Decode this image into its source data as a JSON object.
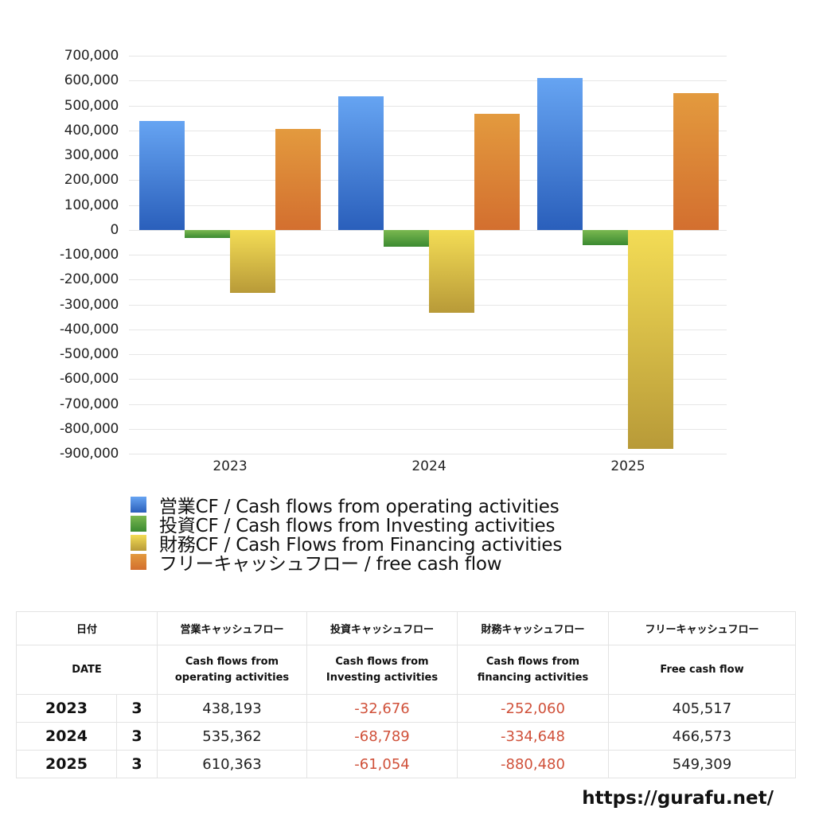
{
  "chart_data": {
    "type": "bar",
    "title": "",
    "xlabel": "",
    "ylabel": "",
    "categories": [
      "2023",
      "2024",
      "2025"
    ],
    "series": [
      {
        "name": "営業CF / Cash flows from operating activities",
        "values": [
          438193,
          535362,
          610363
        ],
        "color_top": "#66a4f2",
        "color_bottom": "#2a5fbb"
      },
      {
        "name": "投資CF / Cash flows from Investing activities",
        "values": [
          -32676,
          -68789,
          -61054
        ],
        "color_top": "#7ab850",
        "color_bottom": "#3b8a31"
      },
      {
        "name": "財務CF / Cash Flows from Financing activities",
        "values": [
          -252060,
          -334648,
          -880480
        ],
        "color_top": "#f3dc55",
        "color_bottom": "#b89a38"
      },
      {
        "name": "フリーキャッシュフロー / free cash flow",
        "values": [
          405517,
          466573,
          549309
        ],
        "color_top": "#e39a3e",
        "color_bottom": "#d36f2f"
      }
    ],
    "yticks": [
      "700,000",
      "600,000",
      "500,000",
      "400,000",
      "300,000",
      "200,000",
      "100,000",
      "0",
      "-100,000",
      "-200,000",
      "-300,000",
      "-400,000",
      "-500,000",
      "-600,000",
      "-700,000",
      "-800,000",
      "-900,000"
    ],
    "ylim": [
      -900000,
      700000
    ],
    "grid": true,
    "legend_position": "bottom"
  },
  "legend": [
    {
      "label": "営業CF / Cash flows from operating activities",
      "color": "#4a86dd"
    },
    {
      "label": "投資CF / Cash flows from Investing activities",
      "color": "#55a041"
    },
    {
      "label": "財務CF / Cash Flows from Financing activities",
      "color": "#dcc247"
    },
    {
      "label": "フリーキャッシュフロー / free cash flow",
      "color": "#dc8138"
    }
  ],
  "table": {
    "header_jp": [
      "日付",
      "営業キャッシュフロー",
      "投資キャッシュフロー",
      "財務キャッシュフロー",
      "フリーキャッシュフロー"
    ],
    "header_en": [
      "DATE",
      "Cash flows from\noperating activities",
      "Cash flows from\nInvesting activities",
      "Cash flows from\nfinancing activities",
      "Free cash flow"
    ],
    "rows": [
      {
        "year": "2023",
        "month": "3",
        "op": "438,193",
        "inv": "-32,676",
        "fin": "-252,060",
        "fcf": "405,517"
      },
      {
        "year": "2024",
        "month": "3",
        "op": "535,362",
        "inv": "-68,789",
        "fin": "-334,648",
        "fcf": "466,573"
      },
      {
        "year": "2025",
        "month": "3",
        "op": "610,363",
        "inv": "-61,054",
        "fin": "-880,480",
        "fcf": "549,309"
      }
    ]
  },
  "footer": {
    "url": "https://gurafu.net/"
  }
}
